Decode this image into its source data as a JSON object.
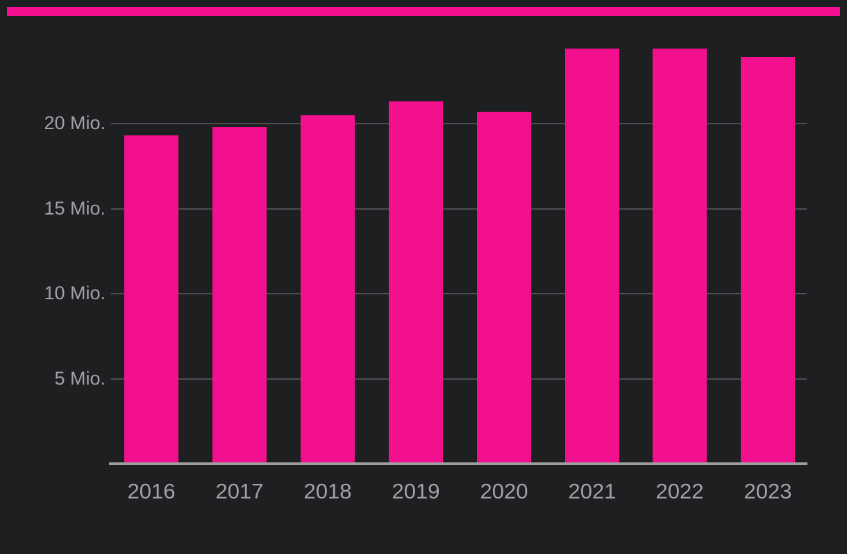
{
  "page": {
    "background_color": "#1e1f21"
  },
  "header": {
    "accent_bar_color": "#f3108f"
  },
  "chart_data": {
    "type": "bar",
    "categories": [
      "2016",
      "2017",
      "2018",
      "2019",
      "2020",
      "2021",
      "2022",
      "2023"
    ],
    "values": [
      19.3,
      19.8,
      20.5,
      21.3,
      20.7,
      24.4,
      24.4,
      23.9
    ],
    "unit": "Mio.",
    "title": "",
    "xlabel": "",
    "ylabel": "",
    "ylim": [
      0,
      25
    ],
    "y_ticks": [
      {
        "value": 5,
        "label": "5 Mio."
      },
      {
        "value": 10,
        "label": "10 Mio."
      },
      {
        "value": 15,
        "label": "15 Mio."
      },
      {
        "value": 20,
        "label": "20 Mio."
      }
    ],
    "grid": "horizontal",
    "legend": "none",
    "bar_color": "#f3108f",
    "gridline_color": "#4c4c51",
    "axis_line_color": "#9e9e9e",
    "tick_label_color": "#a1a2a6"
  }
}
